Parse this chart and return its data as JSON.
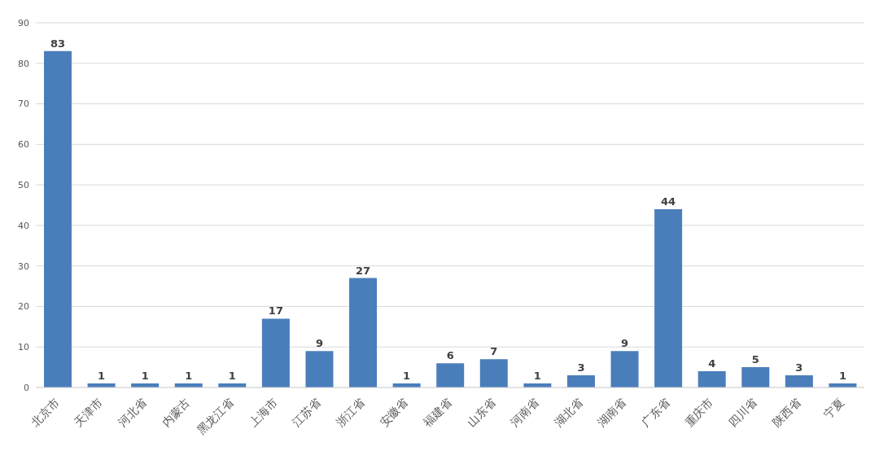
{
  "chart_data": {
    "type": "bar",
    "categories": [
      "北京市",
      "天津市",
      "河北省",
      "内蒙古",
      "黑龙江省",
      "上海市",
      "江苏省",
      "浙江省",
      "安徽省",
      "福建省",
      "山东省",
      "河南省",
      "湖北省",
      "湖南省",
      "广东省",
      "重庆市",
      "四川省",
      "陕西省",
      "宁夏"
    ],
    "values": [
      83,
      1,
      1,
      1,
      1,
      17,
      9,
      27,
      1,
      6,
      7,
      1,
      3,
      9,
      44,
      4,
      5,
      3,
      1
    ],
    "color": "#4a7ebb",
    "ylim": [
      0,
      90
    ],
    "yticks": [
      0,
      10,
      20,
      30,
      40,
      50,
      60,
      70,
      80,
      90
    ],
    "grid": "y",
    "data_labels": true
  }
}
